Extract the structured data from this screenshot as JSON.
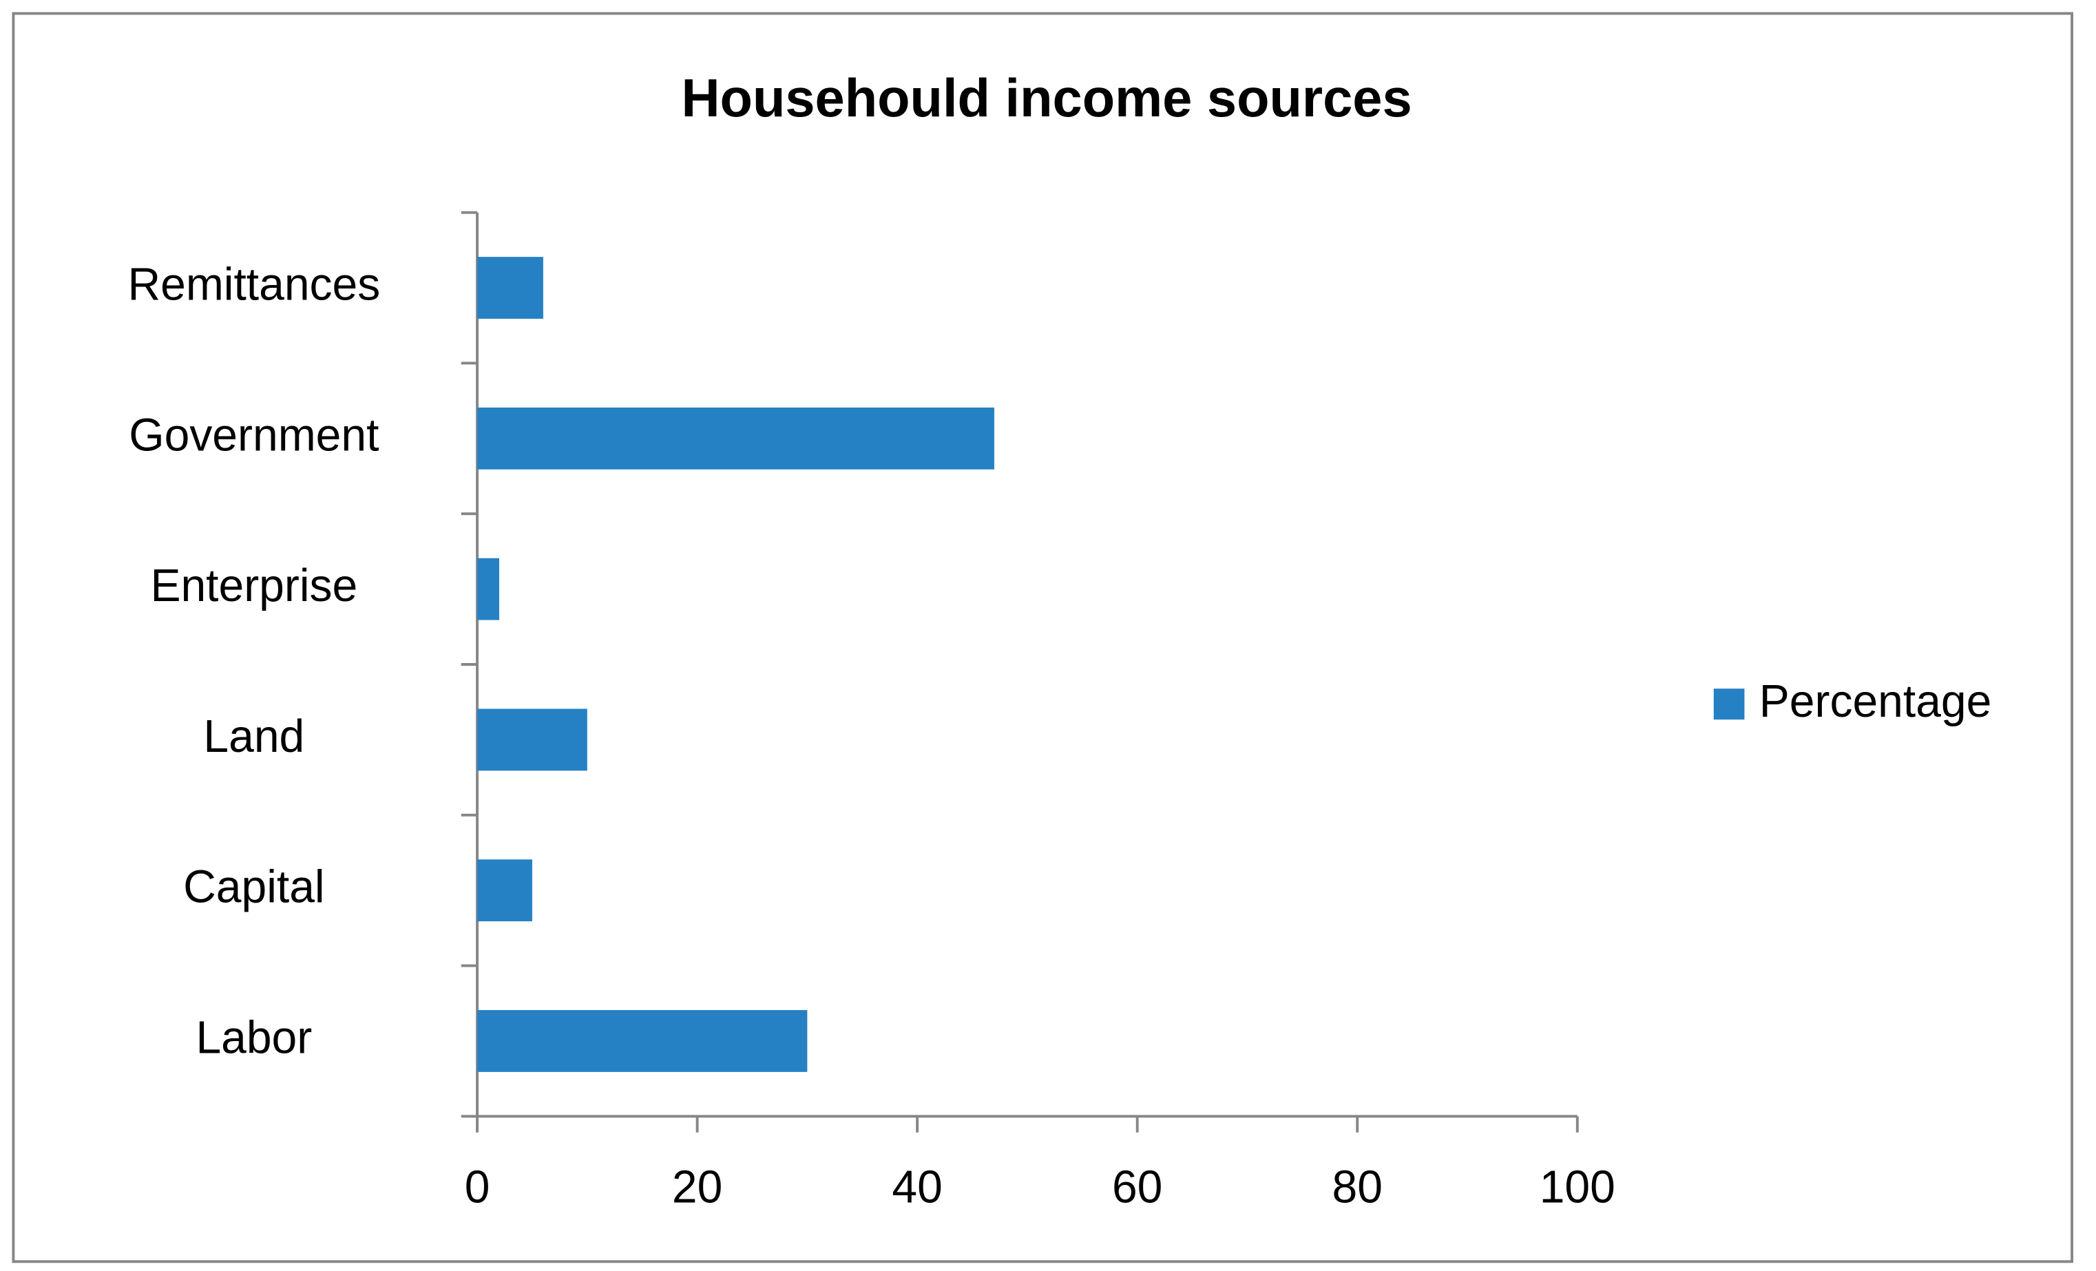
{
  "chart_data": {
    "type": "bar",
    "orientation": "horizontal",
    "title": "Househould income sources",
    "categories": [
      "Labor",
      "Capital",
      "Land",
      "Enterprise",
      "Government",
      "Remittances"
    ],
    "series": [
      {
        "name": "Percentage",
        "color": "#2581c4",
        "values": [
          30,
          5,
          10,
          2,
          47,
          6
        ]
      }
    ],
    "xlim": [
      0,
      100
    ],
    "xticks": [
      0,
      20,
      40,
      60,
      80,
      100
    ],
    "grid": false,
    "legend": "right"
  }
}
